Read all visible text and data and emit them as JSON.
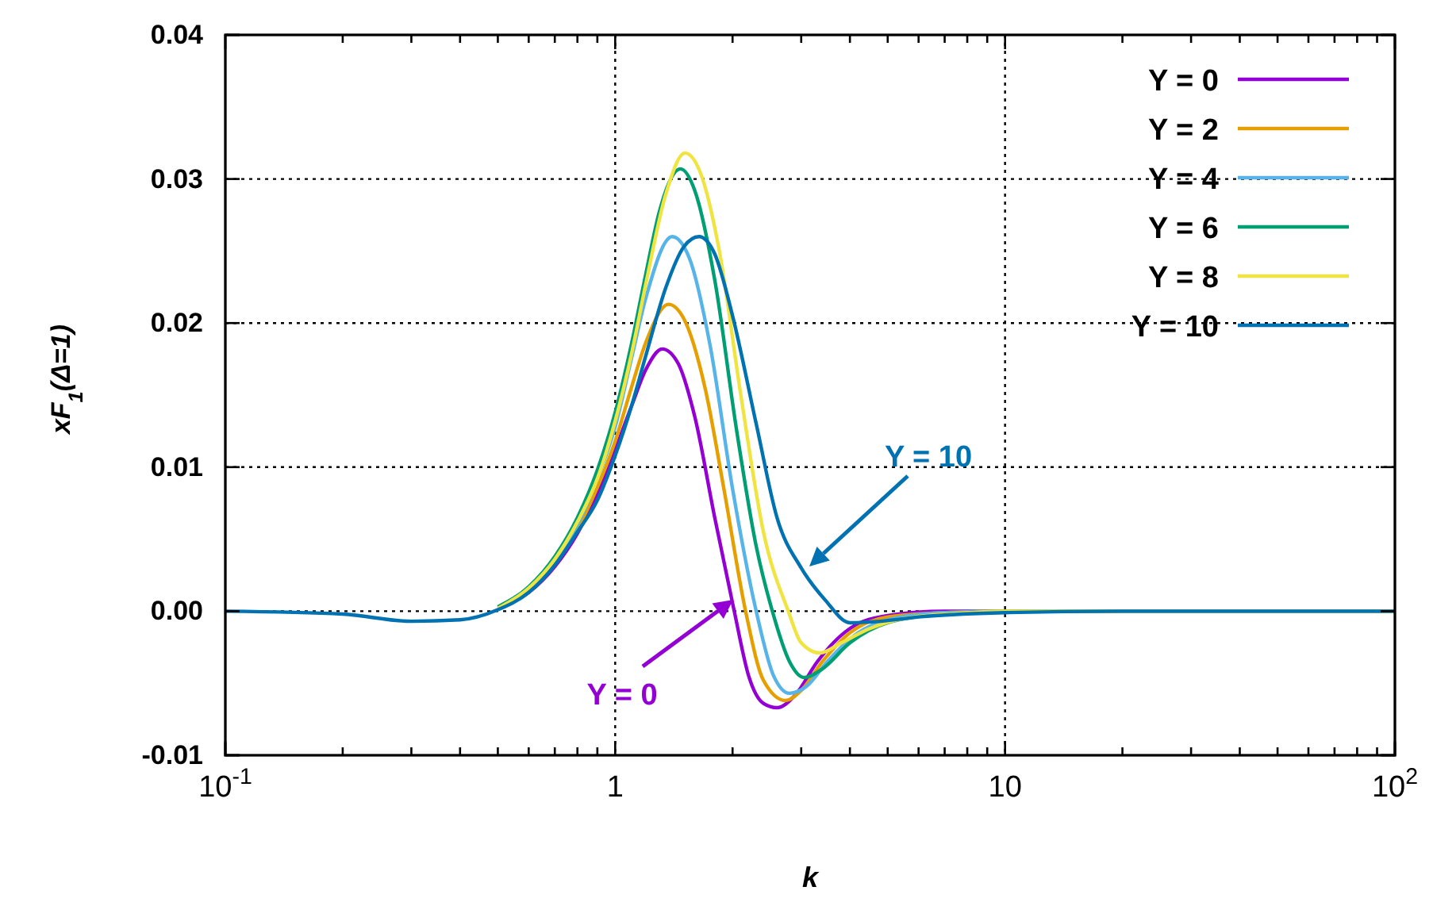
{
  "chart_data": {
    "type": "line",
    "xlabel": "k",
    "ylabel": "xF$_{1}$(Δ=1)",
    "log": "x",
    "xlim": [
      0.1,
      100
    ],
    "ylim": [
      -0.01,
      0.04
    ],
    "xticks": [
      {
        "value": 0.1,
        "label": "10$^{-1}$"
      },
      {
        "value": 0.2,
        "label": null
      },
      {
        "value": 0.3,
        "label": null
      },
      {
        "value": 0.4,
        "label": null
      },
      {
        "value": 0.5,
        "label": null
      },
      {
        "value": 0.6,
        "label": null
      },
      {
        "value": 0.7,
        "label": null
      },
      {
        "value": 0.8,
        "label": null
      },
      {
        "value": 0.9,
        "label": null
      },
      1,
      {
        "value": 2,
        "label": null
      },
      {
        "value": 3,
        "label": null
      },
      {
        "value": 4,
        "label": null
      },
      {
        "value": 5,
        "label": null
      },
      {
        "value": 6,
        "label": null
      },
      {
        "value": 7,
        "label": null
      },
      {
        "value": 8,
        "label": null
      },
      {
        "value": 9,
        "label": null
      },
      10,
      {
        "value": 20,
        "label": null
      },
      {
        "value": 30,
        "label": null
      },
      {
        "value": 40,
        "label": null
      },
      {
        "value": 50,
        "label": null
      },
      {
        "value": 60,
        "label": null
      },
      {
        "value": 70,
        "label": null
      },
      {
        "value": 80,
        "label": null
      },
      {
        "value": 90,
        "label": null
      },
      {
        "value": 100,
        "label": "10$^{2}$"
      }
    ],
    "yticks": [
      -0.01,
      {
        "value": 0,
        "label": "0.00"
      },
      0.01,
      0.02,
      0.03,
      0.04
    ],
    "grid": true,
    "legend": "top right",
    "line_style": "solid",
    "marker": "none",
    "series": [
      {
        "name": "Y = 0",
        "color": "#9400d3",
        "x": [
          0.5,
          0.6,
          0.7,
          0.8,
          0.9,
          1.0,
          1.1,
          1.2,
          1.32,
          1.45,
          1.6,
          1.8,
          2.02,
          2.2,
          2.4,
          2.6,
          2.9,
          3.3,
          4,
          5,
          7,
          10,
          100
        ],
        "values": [
          0.0002,
          0.0013,
          0.0031,
          0.0054,
          0.0082,
          0.0112,
          0.0142,
          0.0168,
          0.0182,
          0.0172,
          0.0135,
          0.0065,
          0,
          -0.0045,
          -0.0064,
          -0.0067,
          -0.0058,
          -0.0035,
          -0.0012,
          -0.0003,
          0,
          0,
          0
        ]
      },
      {
        "name": "Y = 2",
        "color": "#e69f00",
        "x": [
          0.7,
          0.8,
          0.9,
          1.0,
          1.1,
          1.2,
          1.37,
          1.5,
          1.7,
          1.9,
          2.16,
          2.4,
          2.73,
          3.0,
          3.4,
          4,
          5,
          7,
          10,
          100
        ],
        "values": [
          0.0033,
          0.0057,
          0.0086,
          0.0118,
          0.0155,
          0.0187,
          0.0213,
          0.0203,
          0.0155,
          0.0085,
          0,
          -0.0048,
          -0.0062,
          -0.0055,
          -0.0035,
          -0.0015,
          -0.0004,
          -0.0001,
          0,
          0
        ]
      },
      {
        "name": "Y = 4",
        "color": "#56b4e9",
        "x": [
          0.5,
          0.6,
          0.7,
          0.8,
          0.9,
          1.0,
          1.1,
          1.2,
          1.4,
          1.55,
          1.75,
          2.0,
          2.3,
          2.55,
          2.8,
          3.1,
          3.5,
          4.2,
          5,
          7,
          10,
          100
        ],
        "values": [
          0.0002,
          0.0015,
          0.0035,
          0.006,
          0.0092,
          0.0128,
          0.0175,
          0.0218,
          0.026,
          0.0245,
          0.0185,
          0.0085,
          0,
          -0.0045,
          -0.0057,
          -0.0052,
          -0.0035,
          -0.0015,
          -0.0006,
          -0.0001,
          0,
          0
        ]
      },
      {
        "name": "Y = 6",
        "color": "#009e73",
        "x": [
          0.5,
          0.6,
          0.7,
          0.8,
          0.9,
          1.0,
          1.1,
          1.2,
          1.3,
          1.47,
          1.6,
          1.8,
          2.05,
          2.3,
          2.53,
          2.8,
          3.05,
          3.4,
          4,
          5,
          7,
          10,
          100
        ],
        "values": [
          0.0003,
          0.0017,
          0.0038,
          0.0065,
          0.0098,
          0.0138,
          0.0185,
          0.0235,
          0.0278,
          0.0307,
          0.0292,
          0.023,
          0.0125,
          0.0045,
          0,
          -0.0035,
          -0.0046,
          -0.004,
          -0.0022,
          -0.0008,
          -0.0002,
          0,
          0
        ]
      },
      {
        "name": "Y = 8",
        "color": "#f0e442",
        "x": [
          0.5,
          0.6,
          0.7,
          0.8,
          0.9,
          1.0,
          1.1,
          1.2,
          1.35,
          1.51,
          1.65,
          1.85,
          2.1,
          2.4,
          2.78,
          3.0,
          3.35,
          3.8,
          4.5,
          5.5,
          8,
          10,
          100
        ],
        "values": [
          0.0002,
          0.0016,
          0.0036,
          0.0062,
          0.0092,
          0.0132,
          0.0178,
          0.0228,
          0.029,
          0.0318,
          0.0305,
          0.025,
          0.015,
          0.0055,
          0,
          -0.0022,
          -0.0029,
          -0.0022,
          -0.0012,
          -0.0005,
          -0.0001,
          0,
          0
        ]
      },
      {
        "name": "Y = 10",
        "color": "#0072b2",
        "x": [
          0.1,
          0.2,
          0.3,
          0.4,
          0.5,
          0.6,
          0.7,
          0.8,
          0.9,
          1.0,
          1.1,
          1.2,
          1.35,
          1.5,
          1.64,
          1.8,
          2.0,
          2.3,
          2.6,
          3.0,
          3.45,
          4.0,
          4.8,
          6,
          10,
          20,
          100
        ],
        "values": [
          0,
          -0.0002,
          -0.0007,
          -0.0006,
          0.0001,
          0.0013,
          0.0032,
          0.0055,
          0.0077,
          0.0108,
          0.0142,
          0.0178,
          0.0225,
          0.0253,
          0.026,
          0.0248,
          0.0205,
          0.013,
          0.0065,
          0.003,
          0.0008,
          -0.0008,
          -0.0007,
          -0.0004,
          -0.0001,
          0,
          0
        ]
      }
    ],
    "annotations": [
      "Y = 10",
      "Y = 0"
    ]
  }
}
